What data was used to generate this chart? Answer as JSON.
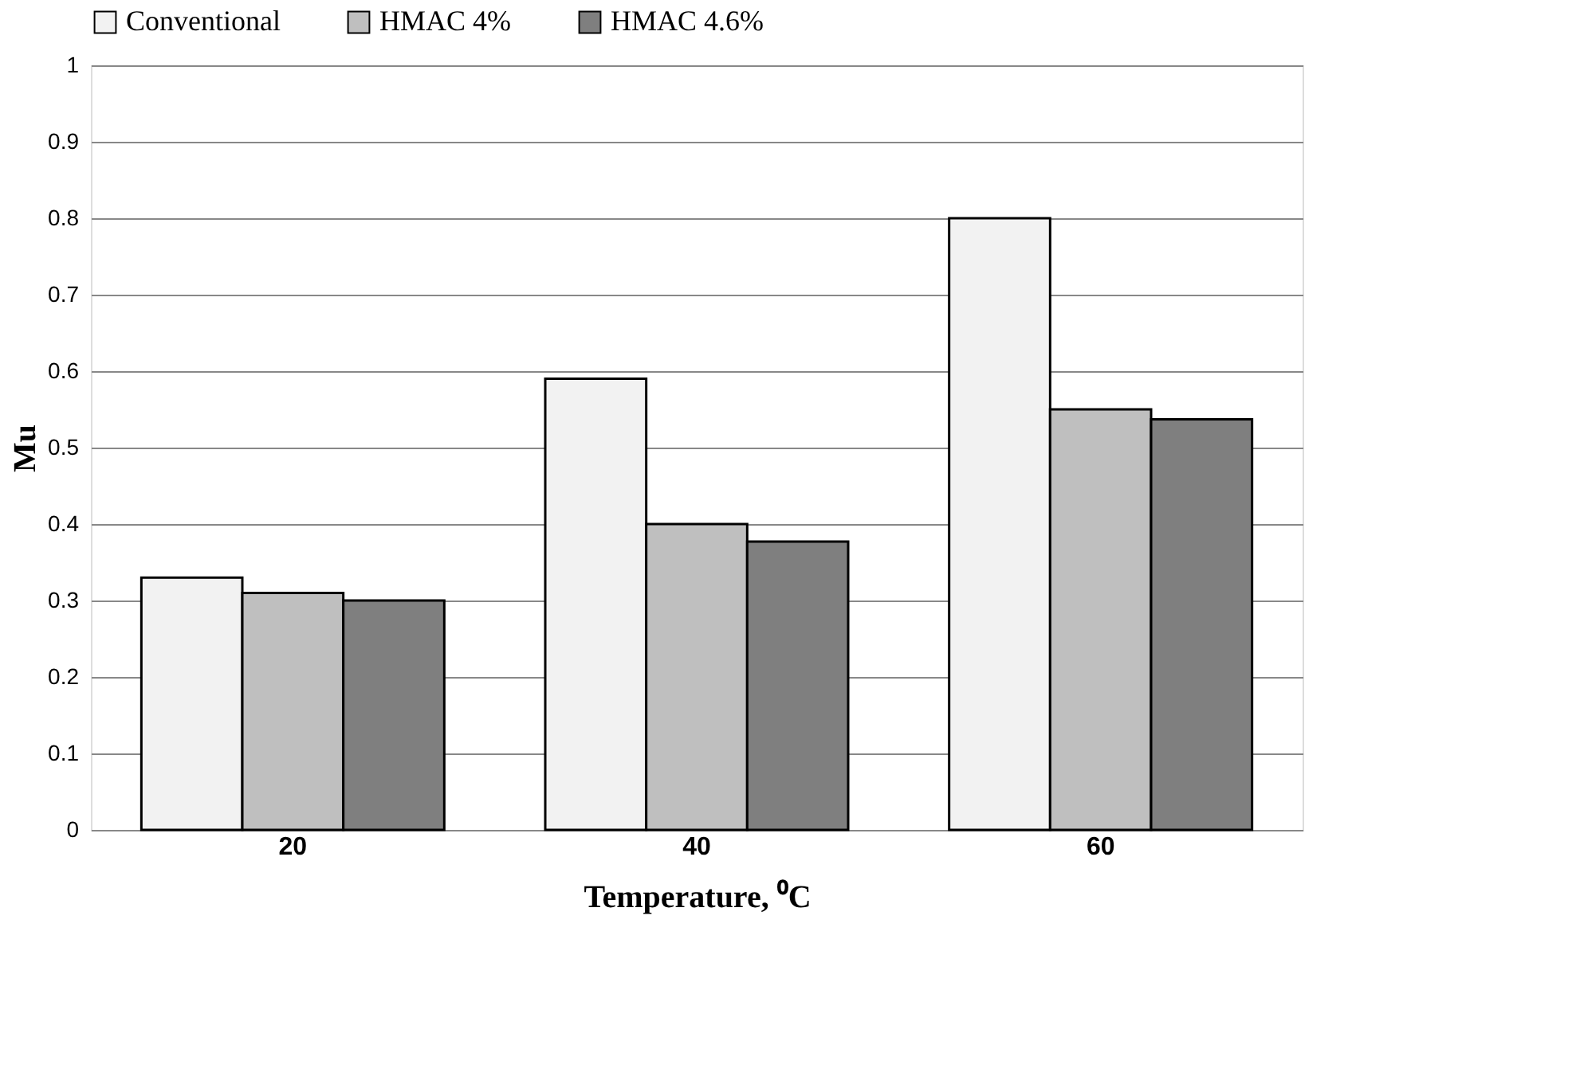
{
  "chart_data": {
    "type": "bar",
    "xlabel": "Temperature, ⁰C",
    "ylabel": "Mu",
    "categories": [
      "20",
      "40",
      "60"
    ],
    "series": [
      {
        "name": "Conventional",
        "color": "#f2f2f2",
        "values": [
          0.33,
          0.59,
          0.8
        ]
      },
      {
        "name": "HMAC 4%",
        "color": "#bfbfbf",
        "values": [
          0.31,
          0.4,
          0.55
        ]
      },
      {
        "name": "HMAC 4.6%",
        "color": "#7f7f7f",
        "values": [
          0.3,
          0.377,
          0.537
        ]
      }
    ],
    "ylim": [
      0,
      1
    ],
    "yticks": [
      0,
      0.1,
      0.2,
      0.3,
      0.4,
      0.5,
      0.6,
      0.7,
      0.8,
      0.9,
      1
    ],
    "grid": "y",
    "legend": "top"
  }
}
